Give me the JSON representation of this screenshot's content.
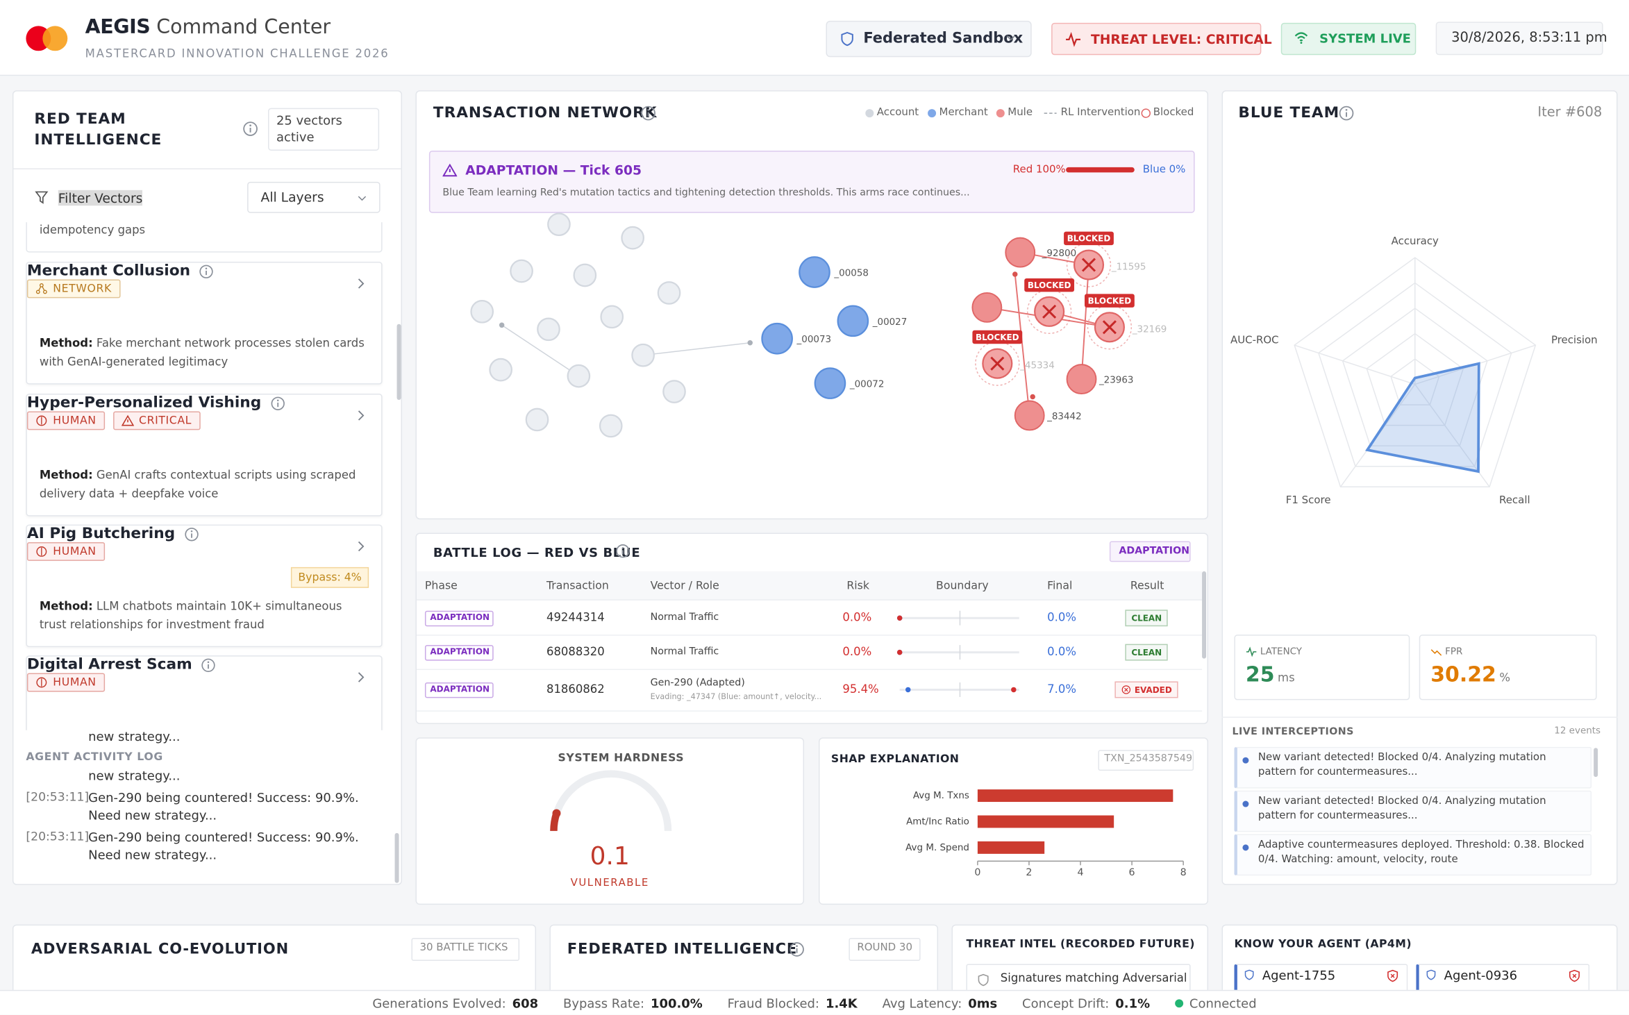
{
  "header": {
    "brand": "AEGIS",
    "title": "Command Center",
    "subtitle": "MASTERCARD INNOVATION CHALLENGE 2026",
    "environment": "Federated Sandbox",
    "threat": "THREAT LEVEL: CRITICAL",
    "status": "SYSTEM LIVE",
    "datetime": "30/8/2026, 8:53:11 pm"
  },
  "red_team": {
    "title": "RED TEAM INTELLIGENCE",
    "active": "25 vectors active",
    "filter": "Filter Vectors",
    "layers": "All Layers",
    "partial": "idempotency gaps",
    "vectors": [
      {
        "name": "Merchant Collusion",
        "tags": [
          {
            "text": "NETWORK",
            "color": "#b7791f",
            "bg": "#fff8e6"
          }
        ],
        "method_label": "Method:",
        "method": "Fake merchant network processes stolen cards with GenAI-generated legitimacy"
      },
      {
        "name": "Hyper-Personalized Vishing",
        "tags": [
          {
            "text": "HUMAN",
            "color": "#c0392b",
            "bg": "#fdf0f0"
          },
          {
            "text": "CRITICAL",
            "color": "#c0392b",
            "bg": "#fdf0f0"
          }
        ],
        "method_label": "Method:",
        "method": "GenAI crafts contextual scripts using scraped delivery data + deepfake voice"
      },
      {
        "name": "AI Pig Butchering",
        "tags": [
          {
            "text": "HUMAN",
            "color": "#c0392b",
            "bg": "#fdf0f0"
          }
        ],
        "bypass": "Bypass: 4%",
        "method_label": "Method:",
        "method": "LLM chatbots maintain 10K+ simultaneous trust relationships for investment fraud"
      },
      {
        "name": "Digital Arrest Scam",
        "tags": [
          {
            "text": "HUMAN",
            "color": "#c0392b",
            "bg": "#fdf0f0"
          }
        ]
      }
    ]
  },
  "activity_log": {
    "title": "AGENT ACTIVITY LOG",
    "fragments": [
      "new strategy...",
      "new strategy..."
    ],
    "entries": [
      {
        "time": "[20:53:11]",
        "text": "Gen-290 being countered! Success: 90.9%. Need new strategy..."
      },
      {
        "time": "[20:53:11]",
        "text": "Gen-290 being countered! Success: 90.9%. Need new strategy..."
      }
    ]
  },
  "network": {
    "title": "TRANSACTION NETWORK",
    "legend": [
      {
        "label": "Account",
        "color": "#d3d8df"
      },
      {
        "label": "Merchant",
        "color": "#7fa8e8"
      },
      {
        "label": "Mule",
        "color": "#ee8f8f"
      },
      {
        "label": "RL Intervention",
        "color": "#9aa0a8"
      },
      {
        "label": "Blocked",
        "color": "#e06666"
      }
    ],
    "adaptation": {
      "title": "ADAPTATION — Tick 605",
      "text": "Blue Team learning Red's mutation tactics and tightening detection thresholds. This arms race continues...",
      "red_label": "Red 100%",
      "red": 100,
      "blue_label": "Blue 0%",
      "blue": 0
    },
    "merchants": [
      "_00058",
      "_00027",
      "_00073",
      "_00072"
    ],
    "mules": [
      "_92800",
      "_23963",
      "_83442"
    ],
    "blocked": [
      "_11595",
      "_32169",
      "_45334"
    ],
    "blocked_tag": "BLOCKED"
  },
  "battle_log": {
    "title": "BATTLE LOG — RED VS BLUE",
    "badge": "ADAPTATION",
    "columns": [
      "Phase",
      "Transaction",
      "Vector / Role",
      "Risk",
      "Boundary",
      "Final",
      "Result"
    ],
    "rows": [
      {
        "phase": "ADAPTATION",
        "txn": "49244314",
        "vector": "Normal Traffic",
        "risk": {
          "value": 0,
          "label": "0.0%"
        },
        "final": {
          "value": 0,
          "label": "0.0%"
        },
        "result": {
          "text": "CLEAN",
          "color": "#2e7d32"
        }
      },
      {
        "phase": "ADAPTATION",
        "txn": "68088320",
        "vector": "Normal Traffic",
        "risk": {
          "value": 0,
          "label": "0.0%"
        },
        "final": {
          "value": 0,
          "label": "0.0%"
        },
        "result": {
          "text": "CLEAN",
          "color": "#2e7d32"
        }
      },
      {
        "phase": "ADAPTATION",
        "txn": "81860862",
        "vector": "Gen-290 (Adapted)",
        "sub": "Evading: _47347 (Blue: amount↑, velocity...",
        "risk": {
          "value": 95.4,
          "label": "95.4%"
        },
        "final": {
          "value": 7,
          "label": "7.0%"
        },
        "result": {
          "text": "EVADED",
          "color": "#d32f2f"
        }
      }
    ]
  },
  "hardness": {
    "title": "SYSTEM HARDNESS",
    "value": 0.1,
    "status": "VULNERABLE"
  },
  "chart_data": {
    "type": "hbar",
    "title": "SHAP EXPLANATION",
    "txn": "TXN_2543587549",
    "categories": [
      "Avg M. Txns",
      "Amt/Inc Ratio",
      "Avg M. Spend"
    ],
    "values": [
      7.6,
      5.3,
      2.6
    ],
    "color": "#cc3b2f",
    "xlim": [
      0,
      8
    ],
    "xticks": [
      0,
      2,
      4,
      6,
      8
    ]
  },
  "blue_team": {
    "title": "BLUE TEAM",
    "iter": "Iter #608",
    "radar": {
      "type": "radar",
      "axes": [
        "Accuracy",
        "Precision",
        "Recall",
        "F1 Score",
        "AUC-ROC"
      ],
      "values": [
        0.05,
        0.53,
        0.85,
        0.64,
        0.03
      ],
      "color": "#5b8fdc"
    },
    "latency": {
      "label": "LATENCY",
      "value": "25",
      "unit": "ms"
    },
    "fpr": {
      "label": "FPR",
      "value": "30.22",
      "unit": "%"
    },
    "interceptions": {
      "title": "LIVE INTERCEPTIONS",
      "count": "12 events",
      "items": [
        "New variant detected! Blocked 0/4. Analyzing mutation pattern for countermeasures...",
        "New variant detected! Blocked 0/4. Analyzing mutation pattern for countermeasures...",
        "Adaptive countermeasures deployed. Threshold: 0.38. Blocked 0/4. Watching: amount, velocity, route"
      ]
    }
  },
  "bottom": {
    "coevolution": {
      "title": "ADVERSARIAL CO-EVOLUTION",
      "badge": "30 BATTLE TICKS"
    },
    "federated": {
      "title": "FEDERATED INTELLIGENCE",
      "badge": "ROUND 30"
    },
    "threat_intel": {
      "title": "THREAT INTEL (RECORDED FUTURE)",
      "item": "Signatures matching Adversarial"
    },
    "kya": {
      "title": "KNOW YOUR AGENT (AP4M)",
      "agents": [
        "Agent-1755",
        "Agent-0936"
      ]
    }
  },
  "footer": {
    "stats": [
      {
        "label": "Generations Evolved:",
        "value": "608"
      },
      {
        "label": "Bypass Rate:",
        "value": "100.0%"
      },
      {
        "label": "Fraud Blocked:",
        "value": "1.4K"
      },
      {
        "label": "Avg Latency:",
        "value": "0ms"
      },
      {
        "label": "Concept Drift:",
        "value": "0.1%"
      }
    ],
    "connection": "Connected"
  }
}
